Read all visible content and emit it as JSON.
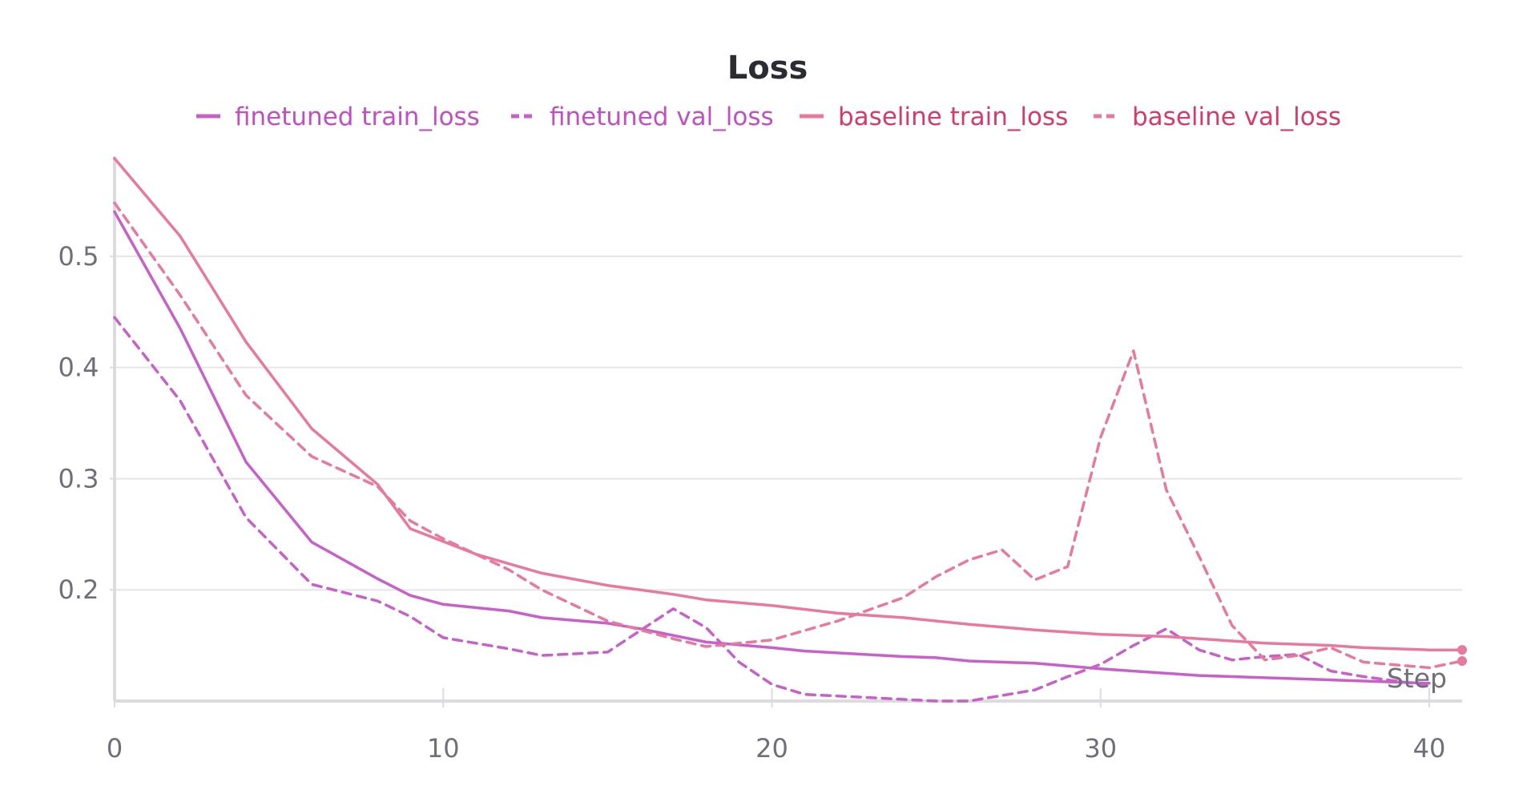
{
  "chart_data": {
    "type": "line",
    "title": "Loss",
    "xlabel": "Step",
    "ylabel": "",
    "xlim": [
      0,
      41
    ],
    "ylim": [
      0.1,
      0.59
    ],
    "x_ticks": [
      0,
      10,
      20,
      30,
      40
    ],
    "y_ticks": [
      0.2,
      0.3,
      0.4,
      0.5
    ],
    "grid": true,
    "legend_position": "top",
    "series": [
      {
        "name": "finetuned train_loss",
        "color": "#c760c9",
        "dash": "solid",
        "x": [
          0,
          2,
          4,
          6,
          8,
          9,
          10,
          12,
          13,
          15,
          16,
          18,
          20,
          21,
          24,
          25,
          26,
          28,
          30,
          33,
          35,
          37,
          40
        ],
        "y": [
          0.54,
          0.435,
          0.315,
          0.243,
          0.21,
          0.195,
          0.187,
          0.181,
          0.175,
          0.17,
          0.165,
          0.153,
          0.148,
          0.145,
          0.14,
          0.139,
          0.136,
          0.134,
          0.129,
          0.123,
          0.121,
          0.119,
          0.116
        ]
      },
      {
        "name": "finetuned val_loss",
        "color": "#c760c9",
        "dash": "dashed",
        "x": [
          0,
          2,
          4,
          6,
          8,
          9,
          10,
          12,
          13,
          15,
          17,
          18,
          19,
          20,
          21,
          23,
          25,
          26,
          28,
          29,
          30,
          31,
          32,
          33,
          34,
          35,
          36,
          37,
          38,
          40
        ],
        "y": [
          0.445,
          0.37,
          0.265,
          0.205,
          0.19,
          0.176,
          0.157,
          0.147,
          0.141,
          0.144,
          0.183,
          0.166,
          0.135,
          0.115,
          0.106,
          0.103,
          0.1,
          0.1,
          0.11,
          0.122,
          0.133,
          0.15,
          0.165,
          0.146,
          0.137,
          0.14,
          0.142,
          0.127,
          0.122,
          0.114
        ]
      },
      {
        "name": "baseline train_loss",
        "color": "#e8799c",
        "dash": "solid",
        "x": [
          0,
          2,
          4,
          6,
          8,
          9,
          11,
          13,
          15,
          17,
          18,
          20,
          22,
          24,
          26,
          28,
          30,
          32,
          35,
          37,
          38,
          40,
          41
        ],
        "y": [
          0.588,
          0.518,
          0.423,
          0.345,
          0.295,
          0.255,
          0.232,
          0.215,
          0.204,
          0.196,
          0.191,
          0.186,
          0.179,
          0.175,
          0.169,
          0.164,
          0.16,
          0.158,
          0.152,
          0.15,
          0.148,
          0.146,
          0.146
        ]
      },
      {
        "name": "baseline val_loss",
        "color": "#e8799c",
        "dash": "dashed",
        "x": [
          0,
          2,
          4,
          6,
          8,
          9,
          10,
          12,
          13,
          15,
          16,
          17,
          18,
          20,
          22,
          24,
          25,
          26,
          27,
          28,
          29,
          30,
          31,
          32,
          33,
          34,
          35,
          36,
          37,
          38,
          40,
          41
        ],
        "y": [
          0.548,
          0.465,
          0.375,
          0.32,
          0.293,
          0.262,
          0.246,
          0.218,
          0.2,
          0.172,
          0.164,
          0.156,
          0.149,
          0.155,
          0.172,
          0.193,
          0.212,
          0.227,
          0.236,
          0.209,
          0.221,
          0.337,
          0.415,
          0.29,
          0.23,
          0.168,
          0.137,
          0.141,
          0.148,
          0.135,
          0.13,
          0.136
        ]
      }
    ]
  }
}
